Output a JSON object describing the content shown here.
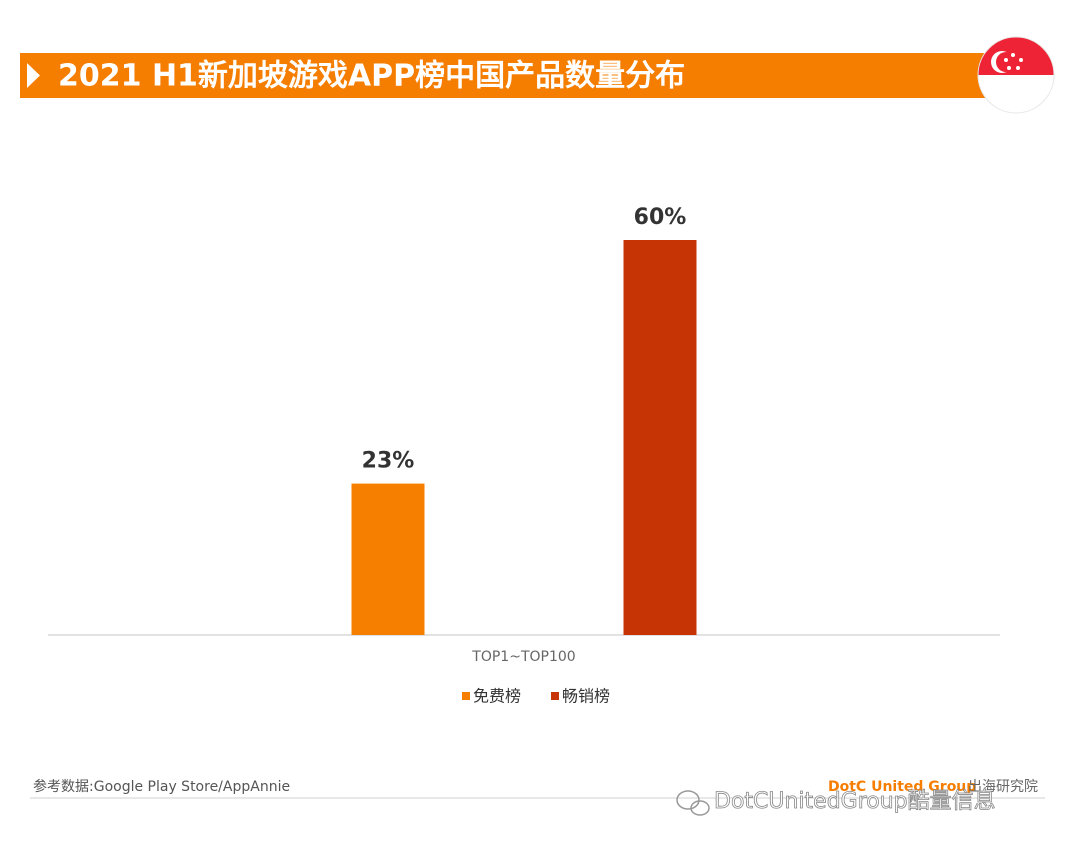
{
  "chart_data": {
    "type": "bar",
    "title": "2021 H1新加坡游戏APP榜中国产品数量分布",
    "categories": [
      "TOP1~TOP100"
    ],
    "series": [
      {
        "name": "免费榜",
        "color": "#f77f00",
        "values": [
          23
        ],
        "value_labels": [
          "23%"
        ]
      },
      {
        "name": "畅销榜",
        "color": "#c63406",
        "values": [
          60
        ],
        "value_labels": [
          "60%"
        ]
      }
    ],
    "legend": "bottom",
    "grid": false
  },
  "source": "参考数据:Google Play Store/AppAnnie",
  "footer": {
    "brand": "DotC United Group",
    "suffix": "出海研究院"
  },
  "watermark": "DotCUnitedGroup酷量信息"
}
